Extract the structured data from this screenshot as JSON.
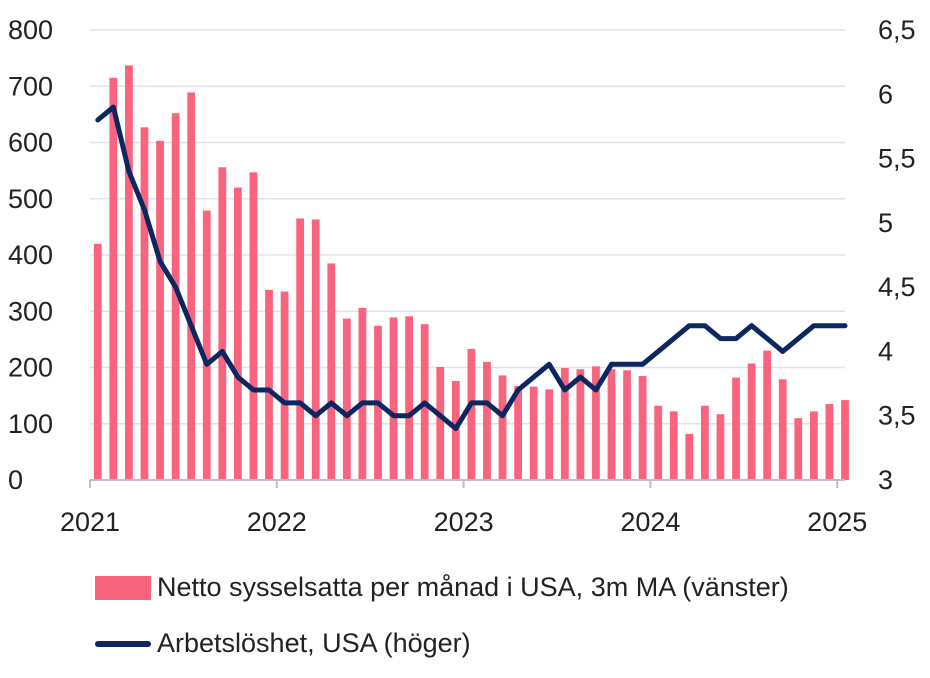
{
  "colors": {
    "bars": "#f8647e",
    "line": "#0b2660",
    "grid": "#dfe3ee",
    "axis": "#b9c0cf"
  },
  "chart_data": {
    "type": "bar",
    "x_start": "2021-01",
    "x_ticks": [
      "2021",
      "2022",
      "2023",
      "2024",
      "2025"
    ],
    "y_left": {
      "ylim": [
        0,
        800
      ],
      "ticks": [
        "0",
        "100",
        "200",
        "300",
        "400",
        "500",
        "600",
        "700",
        "800"
      ]
    },
    "y_right": {
      "ylim": [
        3,
        6.5
      ],
      "ticks": [
        "3",
        "3,5",
        "4",
        "4,5",
        "5",
        "5,5",
        "6",
        "6,5"
      ]
    },
    "grid": true,
    "legend_position": "bottom",
    "series": [
      {
        "name": "Netto sysselsatta per månad i USA, 3m MA (vänster)",
        "type": "bar",
        "axis": "left",
        "values": [
          420,
          715,
          737,
          627,
          603,
          652,
          689,
          479,
          556,
          520,
          547,
          338,
          335,
          465,
          463,
          385,
          287,
          306,
          274,
          289,
          291,
          277,
          201,
          176,
          233,
          210,
          186,
          167,
          166,
          161,
          199,
          197,
          202,
          197,
          195,
          185,
          132,
          122,
          82,
          132,
          117,
          182,
          207,
          230,
          179,
          110,
          122,
          135,
          142
        ]
      },
      {
        "name": "Arbetslöshet, USA (höger)",
        "type": "line",
        "axis": "right",
        "values": [
          5.8,
          5.9,
          5.4,
          5.1,
          4.7,
          4.5,
          4.2,
          3.9,
          4.0,
          3.8,
          3.7,
          3.7,
          3.6,
          3.6,
          3.5,
          3.6,
          3.5,
          3.6,
          3.6,
          3.5,
          3.5,
          3.6,
          3.5,
          3.4,
          3.6,
          3.6,
          3.5,
          3.7,
          3.8,
          3.9,
          3.7,
          3.8,
          3.7,
          3.9,
          3.9,
          3.9,
          4.0,
          4.1,
          4.2,
          4.2,
          4.1,
          4.1,
          4.2,
          4.1,
          4.0,
          4.1,
          4.2,
          4.2,
          4.2
        ]
      }
    ]
  }
}
